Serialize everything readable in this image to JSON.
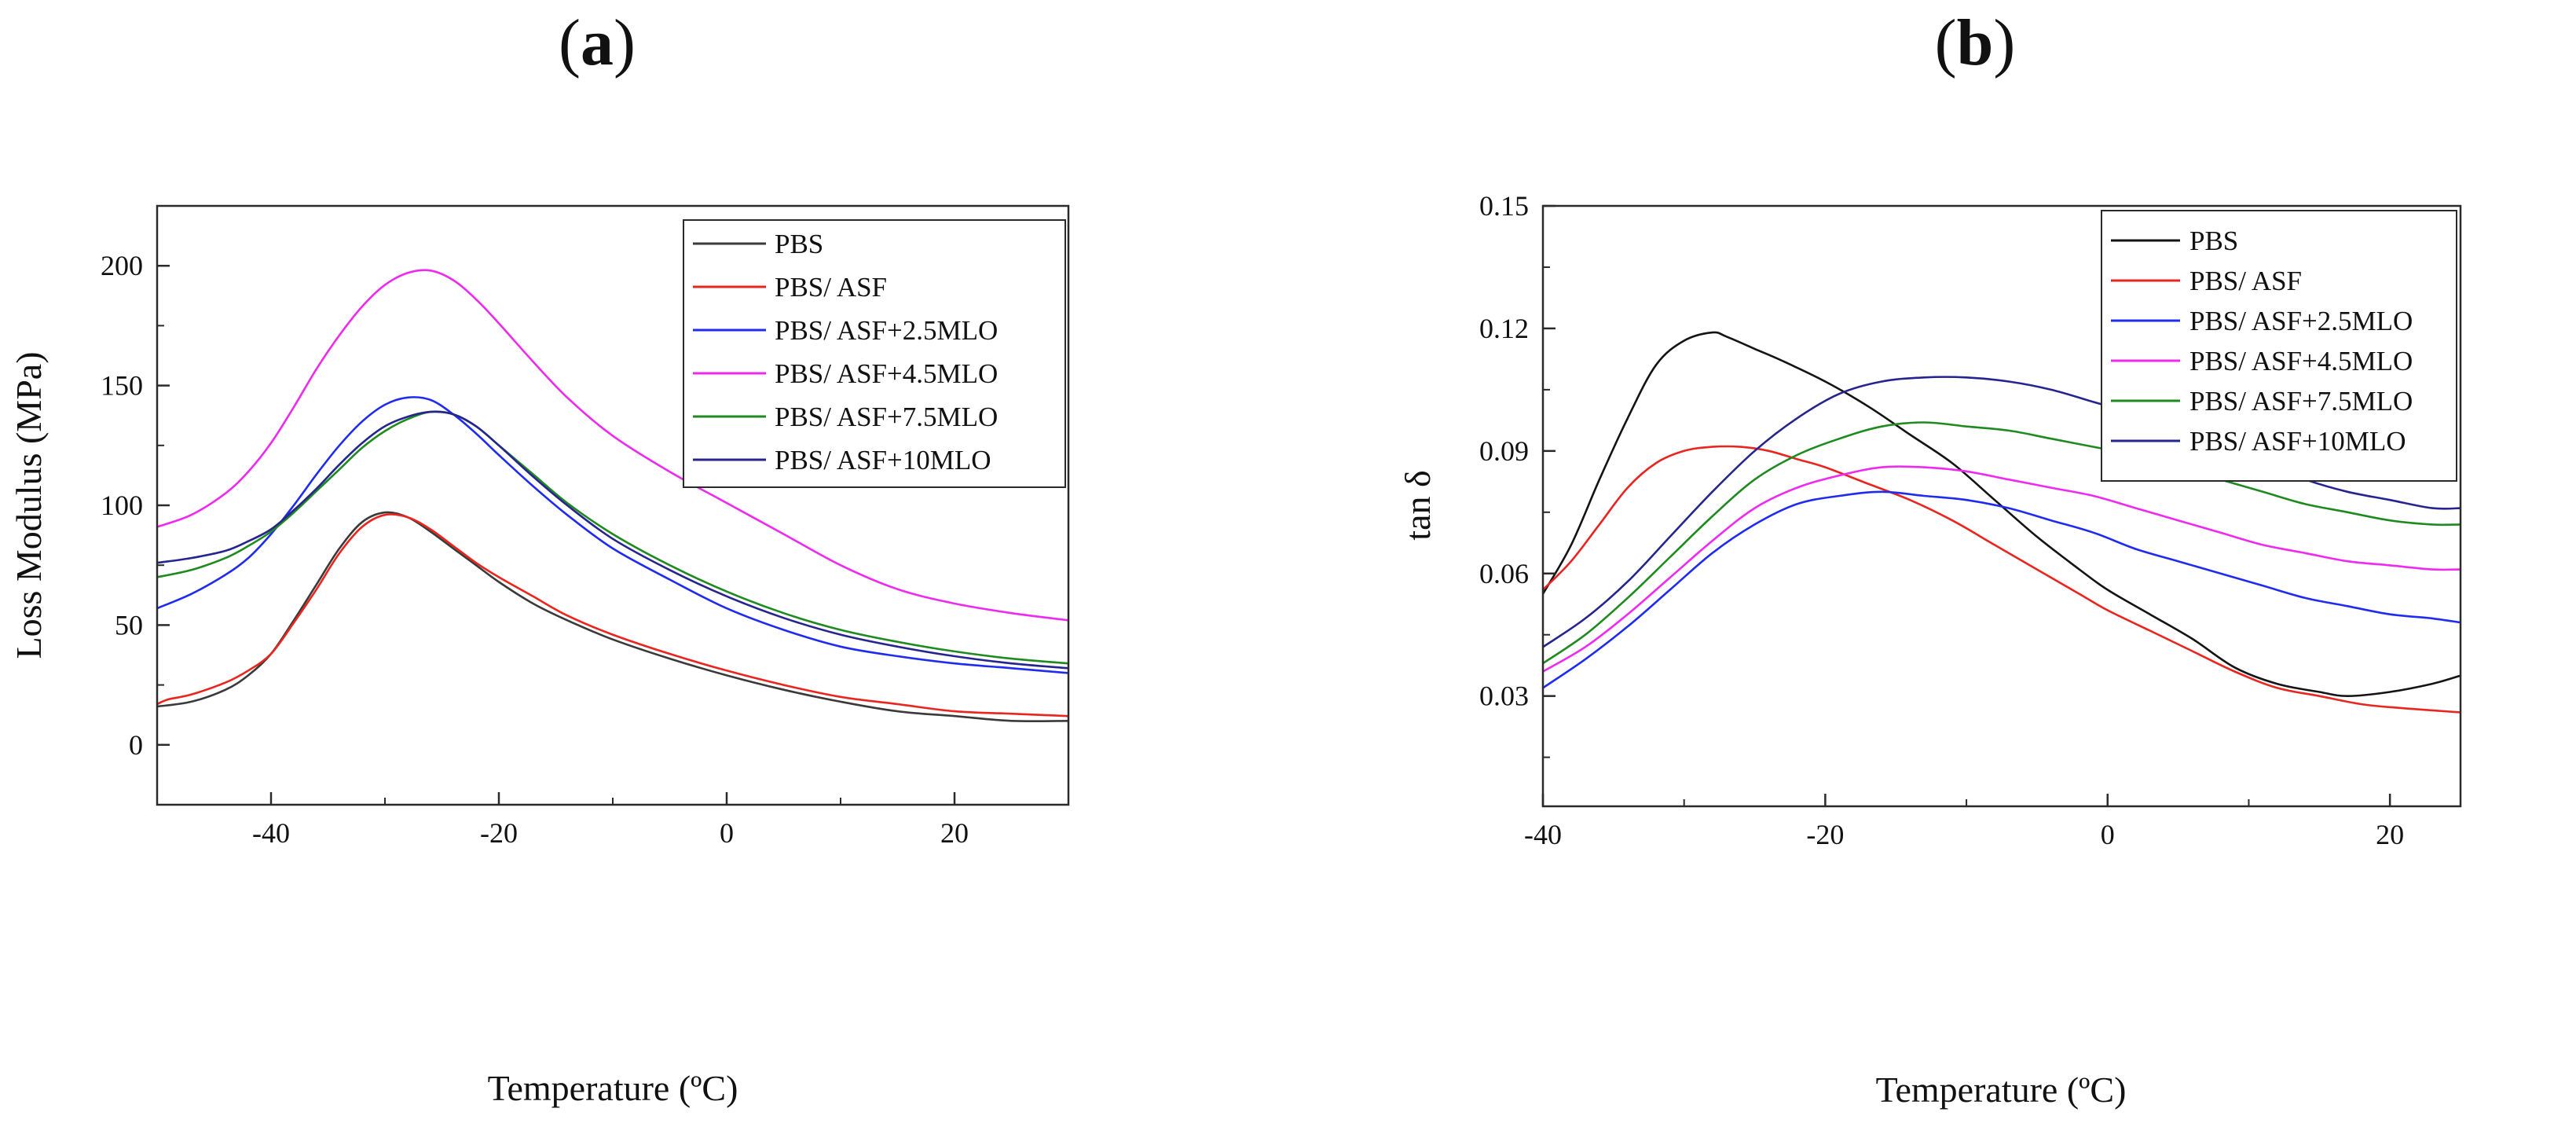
{
  "figure": {
    "panel_labels": [
      {
        "open": "(",
        "letter": "a",
        "close": ")"
      },
      {
        "open": "(",
        "letter": "b",
        "close": ")"
      }
    ]
  },
  "chart_data": [
    {
      "id": "a",
      "type": "line",
      "xlabel": "Temperature (ºC)",
      "ylabel": "Loss Modulus (MPa)",
      "xlim": [
        -50,
        30
      ],
      "ylim": [
        -25,
        225
      ],
      "xticks": [
        -40,
        -20,
        0,
        20
      ],
      "yticks": [
        0,
        50,
        100,
        150,
        200
      ],
      "xtick_labels": [
        "-40",
        "-20",
        "0",
        "20"
      ],
      "ytick_labels": [
        "0",
        "50",
        "100",
        "150",
        "200"
      ],
      "legend_position": "top-right",
      "series": [
        {
          "name": "PBS",
          "color": "#3a3a3a",
          "x": [
            -50,
            -47,
            -44,
            -42,
            -40,
            -38,
            -36,
            -34,
            -32,
            -30,
            -28,
            -26,
            -24,
            -22,
            -20,
            -17,
            -14,
            -10,
            -5,
            0,
            5,
            10,
            15,
            20,
            25,
            30
          ],
          "y": [
            16,
            18,
            23,
            29,
            38,
            52,
            67,
            82,
            93,
            97,
            95,
            89,
            82,
            75,
            68,
            59,
            52,
            44,
            36,
            29,
            23,
            18,
            14,
            12,
            10,
            10
          ]
        },
        {
          "name": "PBS/ ASF",
          "color": "#e8251f",
          "x": [
            -50,
            -49,
            -47,
            -44,
            -42,
            -40,
            -38,
            -36,
            -34,
            -32,
            -30,
            -28,
            -26,
            -24,
            -22,
            -20,
            -17,
            -14,
            -10,
            -5,
            0,
            5,
            10,
            15,
            20,
            25,
            30
          ],
          "y": [
            17,
            19,
            21,
            26,
            31,
            38,
            51,
            65,
            80,
            91,
            96,
            95,
            90,
            83,
            76,
            70,
            62,
            54,
            46,
            38,
            31,
            25,
            20,
            17,
            14,
            13,
            12
          ]
        },
        {
          "name": "PBS/ ASF+2.5MLO",
          "color": "#1f2cf0",
          "x": [
            -50,
            -47,
            -44,
            -42,
            -40,
            -38,
            -36,
            -34,
            -32,
            -30,
            -28,
            -26,
            -24,
            -22,
            -20,
            -17,
            -14,
            -10,
            -5,
            0,
            5,
            10,
            15,
            20,
            25,
            30
          ],
          "y": [
            57,
            63,
            71,
            78,
            88,
            100,
            113,
            125,
            135,
            142,
            145,
            144,
            138,
            130,
            121,
            108,
            96,
            82,
            69,
            57,
            48,
            41,
            37,
            34,
            32,
            30
          ]
        },
        {
          "name": "PBS/ ASF+4.5MLO",
          "color": "#ee2aee",
          "x": [
            -50,
            -47,
            -44,
            -42,
            -40,
            -38,
            -36,
            -34,
            -32,
            -30,
            -28,
            -26,
            -24,
            -22,
            -20,
            -17,
            -14,
            -10,
            -5,
            0,
            5,
            10,
            15,
            20,
            25,
            30
          ],
          "y": [
            91,
            96,
            105,
            114,
            126,
            141,
            157,
            171,
            183,
            192,
            197,
            198,
            194,
            186,
            176,
            160,
            145,
            129,
            114,
            101,
            88,
            75,
            65,
            59,
            55,
            52
          ]
        },
        {
          "name": "PBS/ ASF+7.5MLO",
          "color": "#1f8a1f",
          "x": [
            -50,
            -47,
            -44,
            -42,
            -40,
            -38,
            -36,
            -34,
            -32,
            -30,
            -28,
            -26,
            -24,
            -22,
            -20,
            -17,
            -14,
            -10,
            -5,
            0,
            5,
            10,
            15,
            20,
            25,
            30
          ],
          "y": [
            70,
            73,
            78,
            83,
            89,
            97,
            106,
            115,
            124,
            131,
            136,
            139,
            138,
            133,
            125,
            113,
            101,
            88,
            75,
            64,
            55,
            48,
            43,
            39,
            36,
            34
          ]
        },
        {
          "name": "PBS/ ASF+10MLO",
          "color": "#26248f",
          "x": [
            -50,
            -47,
            -44,
            -42,
            -40,
            -38,
            -36,
            -34,
            -32,
            -30,
            -28,
            -26,
            -24,
            -22,
            -20,
            -17,
            -14,
            -10,
            -5,
            0,
            5,
            10,
            15,
            20,
            25,
            30
          ],
          "y": [
            76,
            78,
            81,
            85,
            90,
            98,
            107,
            117,
            126,
            133,
            137,
            139,
            138,
            133,
            125,
            112,
            100,
            86,
            73,
            62,
            53,
            46,
            41,
            37,
            34,
            32
          ]
        }
      ]
    },
    {
      "id": "b",
      "type": "line",
      "xlabel": "Temperature (ºC)",
      "ylabel": "tan δ",
      "xlim": [
        -40,
        25
      ],
      "ylim": [
        0.003,
        0.15
      ],
      "xticks": [
        -40,
        -20,
        0,
        20
      ],
      "yticks": [
        0.03,
        0.06,
        0.09,
        0.12,
        0.15
      ],
      "xtick_labels": [
        "-40",
        "-20",
        "0",
        "20"
      ],
      "ytick_labels": [
        "0.03",
        "0.06",
        "0.09",
        "0.12",
        "0.15"
      ],
      "legend_position": "top-right",
      "series": [
        {
          "name": "PBS",
          "color": "#141414",
          "x": [
            -40,
            -38,
            -36,
            -34,
            -32,
            -30,
            -28,
            -27,
            -25,
            -23,
            -20,
            -17,
            -14,
            -11,
            -8,
            -5,
            -2,
            0,
            3,
            6,
            9,
            12,
            15,
            17,
            20,
            23,
            25
          ],
          "y": [
            0.055,
            0.067,
            0.083,
            0.098,
            0.111,
            0.117,
            0.119,
            0.118,
            0.115,
            0.112,
            0.107,
            0.101,
            0.094,
            0.087,
            0.078,
            0.069,
            0.061,
            0.056,
            0.05,
            0.044,
            0.037,
            0.033,
            0.031,
            0.03,
            0.031,
            0.033,
            0.035
          ]
        },
        {
          "name": "PBS/ ASF",
          "color": "#e8251f",
          "x": [
            -40,
            -38,
            -36,
            -34,
            -32,
            -30,
            -28,
            -26,
            -24,
            -22,
            -20,
            -17,
            -14,
            -11,
            -8,
            -5,
            -2,
            0,
            3,
            6,
            9,
            12,
            15,
            18,
            21,
            25
          ],
          "y": [
            0.056,
            0.063,
            0.072,
            0.081,
            0.087,
            0.09,
            0.091,
            0.091,
            0.09,
            0.088,
            0.086,
            0.082,
            0.078,
            0.073,
            0.067,
            0.061,
            0.055,
            0.051,
            0.046,
            0.041,
            0.036,
            0.032,
            0.03,
            0.028,
            0.027,
            0.026
          ]
        },
        {
          "name": "PBS/ ASF+2.5MLO",
          "color": "#1f2cf0",
          "x": [
            -40,
            -37,
            -34,
            -31,
            -28,
            -25,
            -22,
            -19,
            -16,
            -13,
            -10,
            -7,
            -4,
            -1,
            2,
            5,
            8,
            11,
            14,
            17,
            20,
            23,
            25
          ],
          "y": [
            0.032,
            0.039,
            0.047,
            0.056,
            0.065,
            0.072,
            0.077,
            0.079,
            0.08,
            0.079,
            0.078,
            0.076,
            0.073,
            0.07,
            0.066,
            0.063,
            0.06,
            0.057,
            0.054,
            0.052,
            0.05,
            0.049,
            0.048
          ]
        },
        {
          "name": "PBS/ ASF+4.5MLO",
          "color": "#ee2aee",
          "x": [
            -40,
            -37,
            -34,
            -31,
            -28,
            -25,
            -22,
            -19,
            -16,
            -13,
            -10,
            -7,
            -4,
            -1,
            2,
            5,
            8,
            11,
            14,
            17,
            20,
            23,
            25
          ],
          "y": [
            0.036,
            0.042,
            0.05,
            0.059,
            0.068,
            0.076,
            0.081,
            0.084,
            0.086,
            0.086,
            0.085,
            0.083,
            0.081,
            0.079,
            0.076,
            0.073,
            0.07,
            0.067,
            0.065,
            0.063,
            0.062,
            0.061,
            0.061
          ]
        },
        {
          "name": "PBS/ ASF+7.5MLO",
          "color": "#1f8a1f",
          "x": [
            -40,
            -37,
            -34,
            -31,
            -28,
            -25,
            -22,
            -19,
            -16,
            -13,
            -10,
            -7,
            -4,
            -1,
            2,
            5,
            8,
            11,
            14,
            17,
            20,
            23,
            25
          ],
          "y": [
            0.038,
            0.045,
            0.054,
            0.064,
            0.074,
            0.083,
            0.089,
            0.093,
            0.096,
            0.097,
            0.096,
            0.095,
            0.093,
            0.091,
            0.089,
            0.086,
            0.083,
            0.08,
            0.077,
            0.075,
            0.073,
            0.072,
            0.072
          ]
        },
        {
          "name": "PBS/ ASF+10MLO",
          "color": "#26248f",
          "x": [
            -40,
            -37,
            -34,
            -31,
            -28,
            -25,
            -22,
            -19,
            -16,
            -13,
            -10,
            -7,
            -4,
            -1,
            2,
            5,
            8,
            11,
            14,
            17,
            20,
            23,
            25
          ],
          "y": [
            0.042,
            0.049,
            0.058,
            0.069,
            0.08,
            0.09,
            0.098,
            0.104,
            0.107,
            0.108,
            0.108,
            0.107,
            0.105,
            0.102,
            0.099,
            0.095,
            0.091,
            0.087,
            0.083,
            0.08,
            0.078,
            0.076,
            0.076
          ]
        }
      ]
    }
  ]
}
